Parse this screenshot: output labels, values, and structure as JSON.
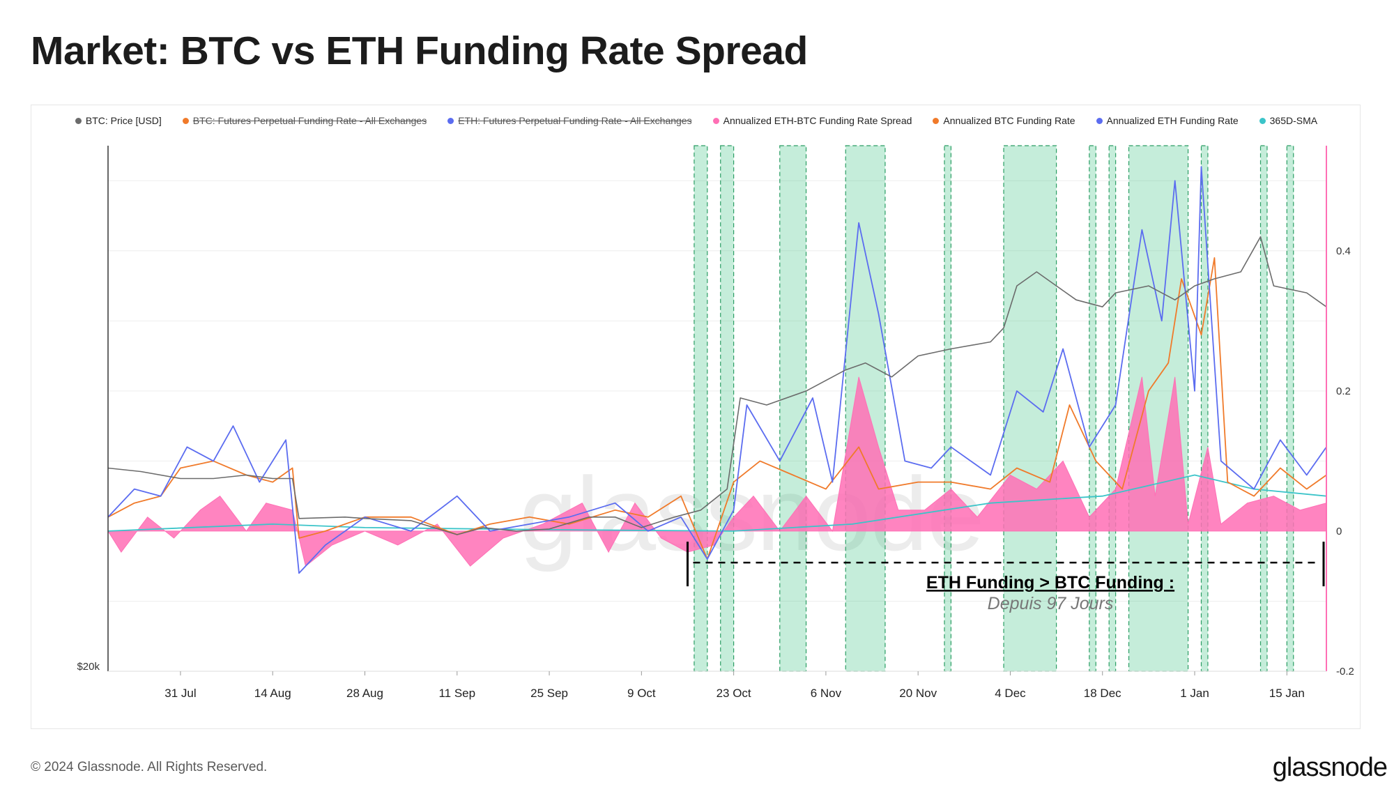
{
  "title": "Market: BTC vs ETH Funding Rate Spread",
  "footer": {
    "copyright": "© 2024 Glassnode. All Rights Reserved.",
    "logo": "glassnode"
  },
  "watermark": "glassnode",
  "legend": [
    {
      "label": "BTC: Price [USD]",
      "color": "#555555",
      "enabled": true
    },
    {
      "label": "BTC: Futures Perpetual Funding Rate - All Exchanges",
      "color": "#f07a2a",
      "enabled": false
    },
    {
      "label": "ETH: Futures Perpetual Funding Rate - All Exchanges",
      "color": "#5b6cf0",
      "enabled": false
    },
    {
      "label": "Annualized ETH-BTC Funding Rate Spread",
      "color": "#ff6fb5",
      "enabled": true
    },
    {
      "label": "Annualized BTC Funding Rate",
      "color": "#f07a2a",
      "enabled": true
    },
    {
      "label": "Annualized ETH Funding Rate",
      "color": "#5b6cf0",
      "enabled": true
    },
    {
      "label": "365D-SMA",
      "color": "#3bc4c9",
      "enabled": true
    }
  ],
  "annotation": {
    "title": "ETH Funding >  BTC Funding :",
    "subtitle": "Depuis 97 Jours"
  },
  "chart_data": {
    "type": "line",
    "x_range": [
      "2023-07-20",
      "2024-01-21"
    ],
    "x_ticks": [
      "31 Jul",
      "14 Aug",
      "28 Aug",
      "11 Sep",
      "25 Sep",
      "9 Oct",
      "23 Oct",
      "6 Nov",
      "20 Nov",
      "4 Dec",
      "18 Dec",
      "1 Jan",
      "15 Jan"
    ],
    "left_axis": {
      "label": "$20k",
      "scale": "log"
    },
    "right_axis": {
      "ylim": [
        -0.2,
        0.55
      ],
      "ticks": [
        "0.4",
        "0.2",
        "0",
        "-0.2"
      ]
    },
    "colors": {
      "btc_price": "#6b6b6b",
      "btc_funding": "#f07a2a",
      "eth_funding": "#5b6cf0",
      "spread": "#ff6fb5",
      "sma": "#3bc4c9",
      "highlight": "#2ebd7a"
    },
    "highlight_ranges": [
      [
        "2023-10-17",
        "2023-10-19"
      ],
      [
        "2023-10-21",
        "2023-10-23"
      ],
      [
        "2023-10-30",
        "2023-11-03"
      ],
      [
        "2023-11-09",
        "2023-11-15"
      ],
      [
        "2023-11-24",
        "2023-11-25"
      ],
      [
        "2023-12-03",
        "2023-12-11"
      ],
      [
        "2023-12-16",
        "2023-12-17"
      ],
      [
        "2023-12-19",
        "2023-12-20"
      ],
      [
        "2023-12-22",
        "2023-12-31"
      ],
      [
        "2024-01-02",
        "2024-01-03"
      ],
      [
        "2024-01-11",
        "2024-01-12"
      ],
      [
        "2024-01-15",
        "2024-01-16"
      ]
    ],
    "series": [
      {
        "name": "BTC: Price [USD]",
        "key": "btc_price",
        "points": [
          [
            "2023-07-20",
            0.09
          ],
          [
            "2023-07-25",
            0.085
          ],
          [
            "2023-07-31",
            0.075
          ],
          [
            "2023-08-05",
            0.075
          ],
          [
            "2023-08-10",
            0.08
          ],
          [
            "2023-08-14",
            0.075
          ],
          [
            "2023-08-17",
            0.075
          ],
          [
            "2023-08-18",
            0.018
          ],
          [
            "2023-08-25",
            0.02
          ],
          [
            "2023-08-28",
            0.018
          ],
          [
            "2023-09-04",
            0.015
          ],
          [
            "2023-09-11",
            -0.005
          ],
          [
            "2023-09-15",
            0.005
          ],
          [
            "2023-09-20",
            0.0
          ],
          [
            "2023-09-25",
            0.003
          ],
          [
            "2023-10-01",
            0.02
          ],
          [
            "2023-10-05",
            0.02
          ],
          [
            "2023-10-09",
            0.005
          ],
          [
            "2023-10-14",
            0.02
          ],
          [
            "2023-10-18",
            0.03
          ],
          [
            "2023-10-22",
            0.06
          ],
          [
            "2023-10-24",
            0.19
          ],
          [
            "2023-10-28",
            0.18
          ],
          [
            "2023-11-03",
            0.2
          ],
          [
            "2023-11-09",
            0.23
          ],
          [
            "2023-11-12",
            0.24
          ],
          [
            "2023-11-16",
            0.22
          ],
          [
            "2023-11-20",
            0.25
          ],
          [
            "2023-11-25",
            0.26
          ],
          [
            "2023-12-01",
            0.27
          ],
          [
            "2023-12-03",
            0.29
          ],
          [
            "2023-12-05",
            0.35
          ],
          [
            "2023-12-08",
            0.37
          ],
          [
            "2023-12-11",
            0.35
          ],
          [
            "2023-12-14",
            0.33
          ],
          [
            "2023-12-18",
            0.32
          ],
          [
            "2023-12-20",
            0.34
          ],
          [
            "2023-12-25",
            0.35
          ],
          [
            "2023-12-29",
            0.33
          ],
          [
            "2024-01-01",
            0.35
          ],
          [
            "2024-01-04",
            0.36
          ],
          [
            "2024-01-08",
            0.37
          ],
          [
            "2024-01-11",
            0.42
          ],
          [
            "2024-01-13",
            0.35
          ],
          [
            "2024-01-18",
            0.34
          ],
          [
            "2024-01-21",
            0.32
          ]
        ]
      },
      {
        "name": "Annualized BTC Funding Rate",
        "key": "btc_funding",
        "points": [
          [
            "2023-07-20",
            0.02
          ],
          [
            "2023-07-24",
            0.04
          ],
          [
            "2023-07-28",
            0.05
          ],
          [
            "2023-07-31",
            0.09
          ],
          [
            "2023-08-05",
            0.1
          ],
          [
            "2023-08-10",
            0.08
          ],
          [
            "2023-08-14",
            0.07
          ],
          [
            "2023-08-17",
            0.09
          ],
          [
            "2023-08-18",
            -0.01
          ],
          [
            "2023-08-22",
            0.0
          ],
          [
            "2023-08-28",
            0.02
          ],
          [
            "2023-09-04",
            0.02
          ],
          [
            "2023-09-11",
            -0.005
          ],
          [
            "2023-09-16",
            0.01
          ],
          [
            "2023-09-22",
            0.02
          ],
          [
            "2023-09-28",
            0.01
          ],
          [
            "2023-10-05",
            0.03
          ],
          [
            "2023-10-10",
            0.02
          ],
          [
            "2023-10-15",
            0.05
          ],
          [
            "2023-10-19",
            -0.04
          ],
          [
            "2023-10-23",
            0.07
          ],
          [
            "2023-10-27",
            0.1
          ],
          [
            "2023-11-01",
            0.08
          ],
          [
            "2023-11-06",
            0.06
          ],
          [
            "2023-11-11",
            0.12
          ],
          [
            "2023-11-14",
            0.06
          ],
          [
            "2023-11-20",
            0.07
          ],
          [
            "2023-11-25",
            0.07
          ],
          [
            "2023-12-01",
            0.06
          ],
          [
            "2023-12-05",
            0.09
          ],
          [
            "2023-12-10",
            0.07
          ],
          [
            "2023-12-13",
            0.18
          ],
          [
            "2023-12-17",
            0.1
          ],
          [
            "2023-12-21",
            0.06
          ],
          [
            "2023-12-25",
            0.2
          ],
          [
            "2023-12-28",
            0.24
          ],
          [
            "2023-12-30",
            0.36
          ],
          [
            "2024-01-02",
            0.28
          ],
          [
            "2024-01-04",
            0.39
          ],
          [
            "2024-01-06",
            0.07
          ],
          [
            "2024-01-10",
            0.05
          ],
          [
            "2024-01-14",
            0.09
          ],
          [
            "2024-01-18",
            0.06
          ],
          [
            "2024-01-21",
            0.08
          ]
        ]
      },
      {
        "name": "Annualized ETH Funding Rate",
        "key": "eth_funding",
        "points": [
          [
            "2023-07-20",
            0.02
          ],
          [
            "2023-07-24",
            0.06
          ],
          [
            "2023-07-28",
            0.05
          ],
          [
            "2023-08-01",
            0.12
          ],
          [
            "2023-08-05",
            0.1
          ],
          [
            "2023-08-08",
            0.15
          ],
          [
            "2023-08-12",
            0.07
          ],
          [
            "2023-08-16",
            0.13
          ],
          [
            "2023-08-18",
            -0.06
          ],
          [
            "2023-08-22",
            -0.02
          ],
          [
            "2023-08-28",
            0.02
          ],
          [
            "2023-09-04",
            0.0
          ],
          [
            "2023-09-11",
            0.05
          ],
          [
            "2023-09-16",
            0.0
          ],
          [
            "2023-09-22",
            0.01
          ],
          [
            "2023-09-28",
            0.02
          ],
          [
            "2023-10-05",
            0.04
          ],
          [
            "2023-10-10",
            0.0
          ],
          [
            "2023-10-15",
            0.02
          ],
          [
            "2023-10-19",
            -0.04
          ],
          [
            "2023-10-23",
            0.03
          ],
          [
            "2023-10-25",
            0.18
          ],
          [
            "2023-10-30",
            0.1
          ],
          [
            "2023-11-04",
            0.19
          ],
          [
            "2023-11-07",
            0.07
          ],
          [
            "2023-11-11",
            0.44
          ],
          [
            "2023-11-14",
            0.31
          ],
          [
            "2023-11-18",
            0.1
          ],
          [
            "2023-11-22",
            0.09
          ],
          [
            "2023-11-25",
            0.12
          ],
          [
            "2023-12-01",
            0.08
          ],
          [
            "2023-12-05",
            0.2
          ],
          [
            "2023-12-09",
            0.17
          ],
          [
            "2023-12-12",
            0.26
          ],
          [
            "2023-12-16",
            0.12
          ],
          [
            "2023-12-20",
            0.18
          ],
          [
            "2023-12-24",
            0.43
          ],
          [
            "2023-12-27",
            0.3
          ],
          [
            "2023-12-29",
            0.5
          ],
          [
            "2024-01-01",
            0.2
          ],
          [
            "2024-01-02",
            0.52
          ],
          [
            "2024-01-05",
            0.1
          ],
          [
            "2024-01-10",
            0.06
          ],
          [
            "2024-01-14",
            0.13
          ],
          [
            "2024-01-18",
            0.08
          ],
          [
            "2024-01-21",
            0.12
          ]
        ]
      },
      {
        "name": "365D-SMA",
        "key": "sma",
        "points": [
          [
            "2023-07-20",
            0.0
          ],
          [
            "2023-08-14",
            0.01
          ],
          [
            "2023-08-28",
            0.005
          ],
          [
            "2023-09-25",
            0.002
          ],
          [
            "2023-10-23",
            0.0
          ],
          [
            "2023-11-10",
            0.01
          ],
          [
            "2023-12-01",
            0.04
          ],
          [
            "2023-12-18",
            0.05
          ],
          [
            "2024-01-01",
            0.08
          ],
          [
            "2024-01-10",
            0.06
          ],
          [
            "2024-01-21",
            0.05
          ]
        ]
      },
      {
        "name": "Annualized ETH-BTC Funding Rate Spread",
        "key": "spread",
        "points": [
          [
            "2023-07-20",
            0.0
          ],
          [
            "2023-07-22",
            -0.03
          ],
          [
            "2023-07-26",
            0.02
          ],
          [
            "2023-07-30",
            -0.01
          ],
          [
            "2023-08-03",
            0.03
          ],
          [
            "2023-08-06",
            0.05
          ],
          [
            "2023-08-10",
            0.0
          ],
          [
            "2023-08-13",
            0.04
          ],
          [
            "2023-08-17",
            0.03
          ],
          [
            "2023-08-19",
            -0.05
          ],
          [
            "2023-08-23",
            -0.02
          ],
          [
            "2023-08-28",
            0.0
          ],
          [
            "2023-09-02",
            -0.02
          ],
          [
            "2023-09-08",
            0.01
          ],
          [
            "2023-09-13",
            -0.05
          ],
          [
            "2023-09-18",
            -0.01
          ],
          [
            "2023-09-24",
            0.01
          ],
          [
            "2023-09-30",
            0.04
          ],
          [
            "2023-10-04",
            -0.03
          ],
          [
            "2023-10-08",
            0.04
          ],
          [
            "2023-10-12",
            -0.01
          ],
          [
            "2023-10-16",
            -0.03
          ],
          [
            "2023-10-20",
            -0.02
          ],
          [
            "2023-10-23",
            0.02
          ],
          [
            "2023-10-26",
            0.05
          ],
          [
            "2023-10-30",
            0.0
          ],
          [
            "2023-11-03",
            0.05
          ],
          [
            "2023-11-07",
            0.0
          ],
          [
            "2023-11-11",
            0.22
          ],
          [
            "2023-11-14",
            0.12
          ],
          [
            "2023-11-17",
            0.03
          ],
          [
            "2023-11-21",
            0.03
          ],
          [
            "2023-11-25",
            0.06
          ],
          [
            "2023-11-29",
            0.02
          ],
          [
            "2023-12-04",
            0.08
          ],
          [
            "2023-12-08",
            0.06
          ],
          [
            "2023-12-12",
            0.1
          ],
          [
            "2023-12-16",
            0.02
          ],
          [
            "2023-12-20",
            0.06
          ],
          [
            "2023-12-24",
            0.22
          ],
          [
            "2023-12-26",
            0.05
          ],
          [
            "2023-12-29",
            0.22
          ],
          [
            "2023-12-31",
            0.01
          ],
          [
            "2024-01-03",
            0.12
          ],
          [
            "2024-01-05",
            0.01
          ],
          [
            "2024-01-09",
            0.04
          ],
          [
            "2024-01-13",
            0.05
          ],
          [
            "2024-01-17",
            0.03
          ],
          [
            "2024-01-21",
            0.04
          ]
        ]
      }
    ]
  }
}
